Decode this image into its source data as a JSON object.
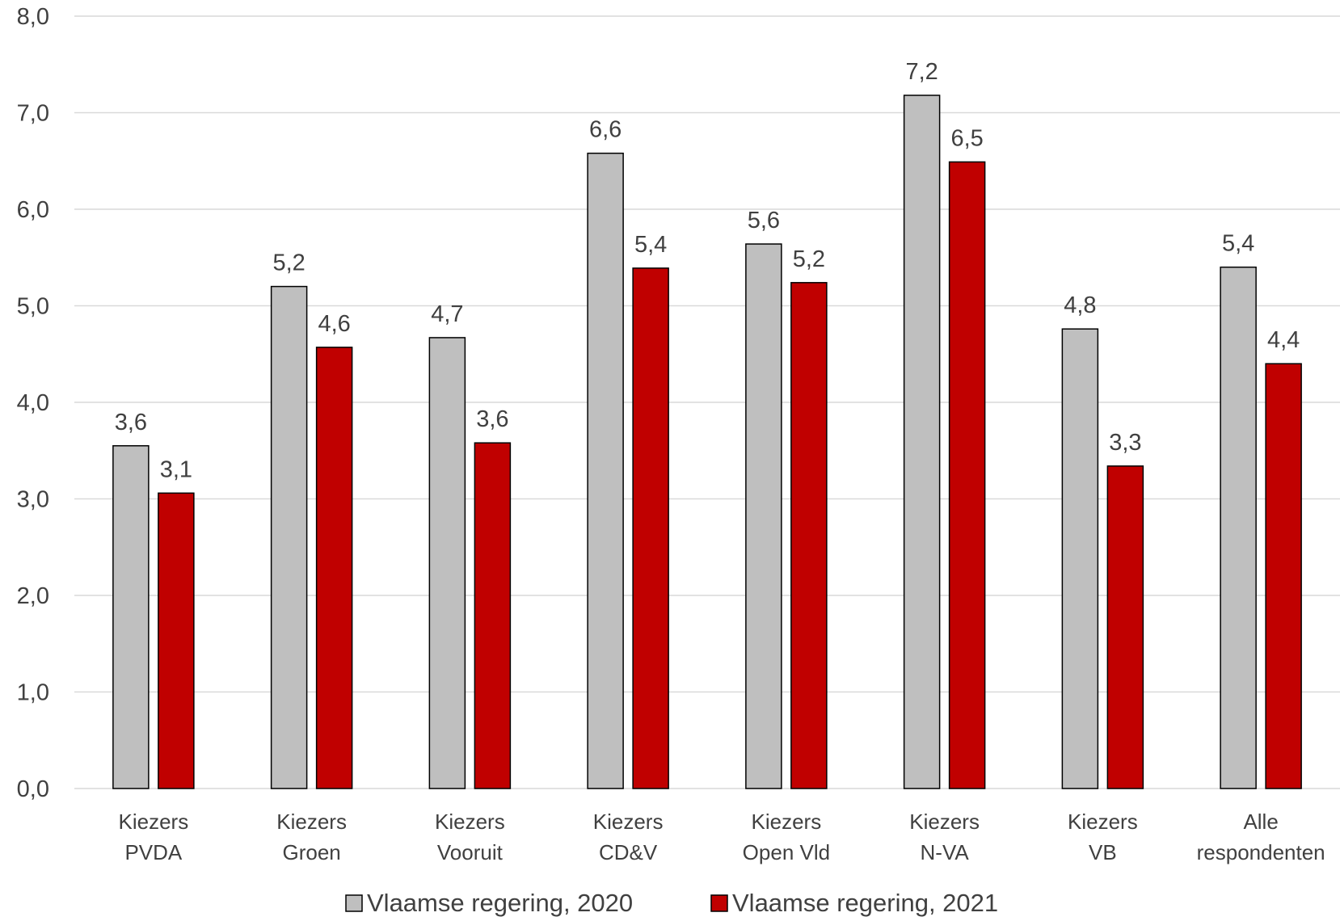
{
  "chart_data": {
    "type": "bar",
    "categories": [
      [
        "Kiezers",
        "PVDA"
      ],
      [
        "Kiezers",
        "Groen"
      ],
      [
        "Kiezers",
        "Vooruit"
      ],
      [
        "Kiezers",
        "CD&V"
      ],
      [
        "Kiezers",
        "Open Vld"
      ],
      [
        "Kiezers",
        "N-VA"
      ],
      [
        "Kiezers",
        "VB"
      ],
      [
        "Alle",
        "respondenten"
      ]
    ],
    "series": [
      {
        "name": "Vlaamse regering, 2020",
        "color": "#bfbfbf",
        "values": [
          3.55,
          5.2,
          4.67,
          6.58,
          5.64,
          7.18,
          4.76,
          5.4
        ],
        "labels": [
          "3,6",
          "5,2",
          "4,7",
          "6,6",
          "5,6",
          "7,2",
          "4,8",
          "5,4"
        ]
      },
      {
        "name": "Vlaamse regering, 2021",
        "color": "#c00000",
        "values": [
          3.06,
          4.57,
          3.58,
          5.39,
          5.24,
          6.49,
          3.34,
          4.4
        ],
        "labels": [
          "3,1",
          "4,6",
          "3,6",
          "5,4",
          "5,2",
          "6,5",
          "3,3",
          "4,4"
        ]
      }
    ],
    "ylim": [
      0,
      8
    ],
    "yticks": [
      0,
      1,
      2,
      3,
      4,
      5,
      6,
      7,
      8
    ],
    "ytick_labels": [
      "0,0",
      "1,0",
      "2,0",
      "3,0",
      "4,0",
      "5,0",
      "6,0",
      "7,0",
      "8,0"
    ],
    "grid": true,
    "legend_position": "bottom"
  }
}
